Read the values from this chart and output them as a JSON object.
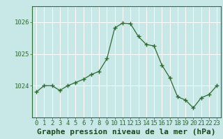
{
  "x": [
    0,
    1,
    2,
    3,
    4,
    5,
    6,
    7,
    8,
    9,
    10,
    11,
    12,
    13,
    14,
    15,
    16,
    17,
    18,
    19,
    20,
    21,
    22,
    23
  ],
  "y": [
    1023.8,
    1024.0,
    1024.0,
    1023.85,
    1024.0,
    1024.1,
    1024.2,
    1024.35,
    1024.45,
    1024.85,
    1025.82,
    1025.97,
    1025.95,
    1025.55,
    1025.3,
    1025.25,
    1024.65,
    1024.25,
    1023.65,
    1023.55,
    1023.3,
    1023.62,
    1023.72,
    1024.0
  ],
  "line_color": "#2d6a2d",
  "marker": "+",
  "marker_size": 4,
  "marker_linewidth": 1.0,
  "background_color": "#c8e8e8",
  "grid_color": "#ffffff",
  "xlabel": "Graphe pression niveau de la mer (hPa)",
  "xlabel_color": "#1a4a1a",
  "yticks": [
    1024,
    1025,
    1026
  ],
  "ylim": [
    1023.0,
    1026.5
  ],
  "xlim": [
    -0.5,
    23.5
  ],
  "tick_color": "#2d6a2d",
  "tick_label_color": "#2d6a2d",
  "spine_color": "#2d6a2d",
  "xlabel_fontsize": 8,
  "tick_fontsize": 6.5,
  "linewidth": 0.9
}
